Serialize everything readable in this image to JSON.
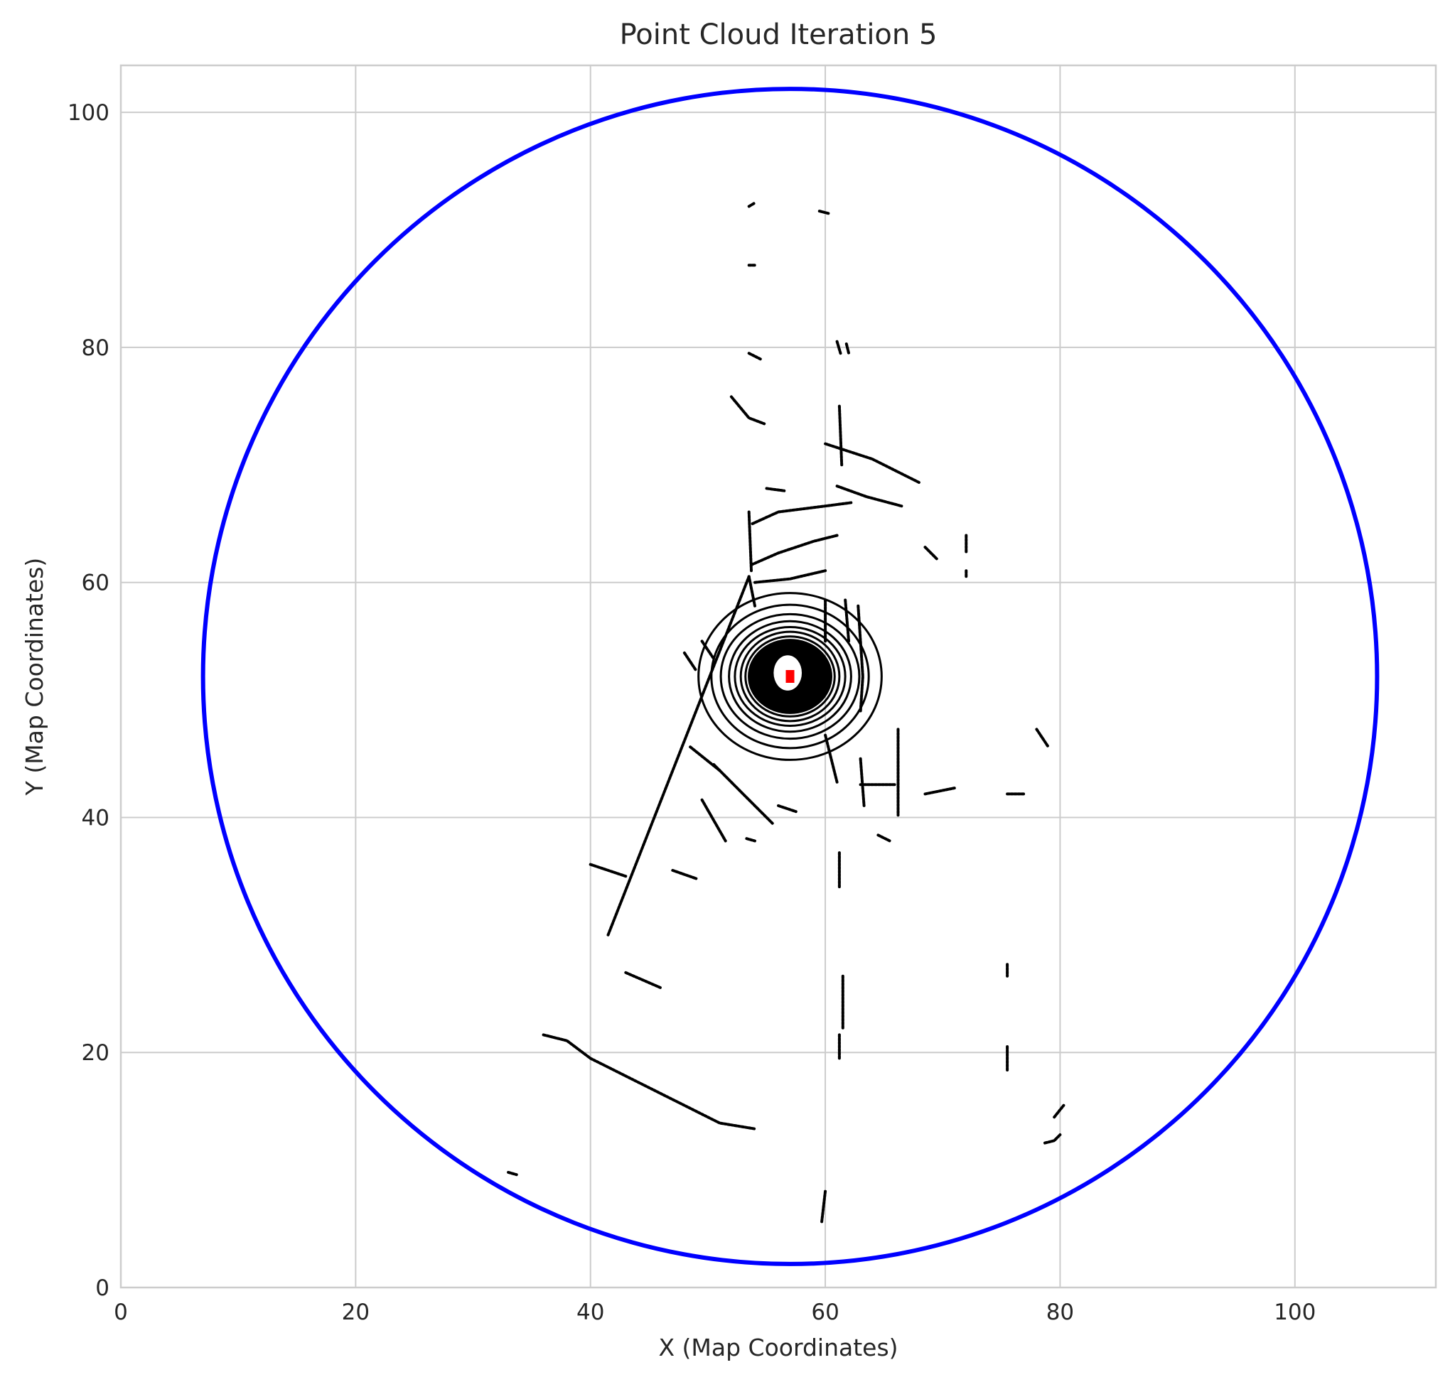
{
  "chart_data": {
    "type": "scatter",
    "title": "Point Cloud Iteration 5",
    "xlabel": "X (Map Coordinates)",
    "ylabel": "Y (Map Coordinates)",
    "xlim": [
      0,
      112
    ],
    "ylim": [
      0,
      104
    ],
    "x_ticks": [
      0,
      20,
      40,
      60,
      80,
      100
    ],
    "y_ticks": [
      0,
      20,
      40,
      60,
      80,
      100
    ],
    "grid": true,
    "colors": {
      "points": "#000000",
      "circle": "#0000ff",
      "center": "#ff0000",
      "grid": "#cccccc",
      "spine": "#cccccc"
    },
    "circle": {
      "center": [
        57,
        52
      ],
      "radius": 50
    },
    "center_marker": {
      "x": 57,
      "y": 52
    },
    "rings": [
      {
        "rx": 3.4,
        "ry": 3.0
      },
      {
        "rx": 3.8,
        "ry": 3.4
      },
      {
        "rx": 4.2,
        "ry": 3.8
      },
      {
        "rx": 4.7,
        "ry": 4.2
      },
      {
        "rx": 5.2,
        "ry": 4.7
      },
      {
        "rx": 5.9,
        "ry": 5.3
      },
      {
        "rx": 6.7,
        "ry": 6.1
      },
      {
        "rx": 7.8,
        "ry": 7.1
      }
    ],
    "segments": [
      [
        [
          41.5,
          30.0
        ],
        [
          53.5,
          60.5
        ]
      ],
      [
        [
          53.5,
          66.0
        ],
        [
          53.7,
          61.0
        ]
      ],
      [
        [
          53.5,
          60.5
        ],
        [
          54.0,
          58.0
        ]
      ],
      [
        [
          53.8,
          65.0
        ],
        [
          56.0,
          66.0
        ],
        [
          60.0,
          66.5
        ],
        [
          62.3,
          66.8
        ]
      ],
      [
        [
          53.7,
          61.5
        ],
        [
          56.0,
          62.5
        ],
        [
          59.0,
          63.5
        ],
        [
          61.0,
          64.0
        ]
      ],
      [
        [
          54.0,
          60.0
        ],
        [
          57.0,
          60.3
        ],
        [
          60.0,
          61.0
        ]
      ],
      [
        [
          60.0,
          71.8
        ],
        [
          64.0,
          70.5
        ],
        [
          68.0,
          68.5
        ]
      ],
      [
        [
          61.0,
          68.2
        ],
        [
          63.5,
          67.3
        ],
        [
          66.5,
          66.5
        ]
      ],
      [
        [
          52.0,
          75.8
        ],
        [
          53.5,
          74.0
        ],
        [
          54.8,
          73.5
        ]
      ],
      [
        [
          50.5,
          44.5
        ],
        [
          53.0,
          42.0
        ],
        [
          55.5,
          39.5
        ]
      ],
      [
        [
          49.5,
          41.5
        ],
        [
          51.5,
          38.0
        ]
      ],
      [
        [
          48.5,
          46.0
        ],
        [
          51.0,
          44.0
        ]
      ],
      [
        [
          40.0,
          36.0
        ],
        [
          43.0,
          35.0
        ]
      ],
      [
        [
          36.0,
          21.5
        ],
        [
          38.0,
          21.0
        ],
        [
          40.0,
          19.5
        ],
        [
          44.0,
          17.5
        ],
        [
          48.0,
          15.5
        ],
        [
          51.0,
          14.0
        ],
        [
          54.0,
          13.5
        ]
      ],
      [
        [
          43.0,
          26.8
        ],
        [
          46.0,
          25.5
        ]
      ],
      [
        [
          47.0,
          35.5
        ],
        [
          49.0,
          34.8
        ]
      ],
      [
        [
          66.2,
          47.5
        ],
        [
          66.2,
          40.2
        ]
      ],
      [
        [
          63.0,
          42.8
        ],
        [
          66.0,
          42.8
        ]
      ],
      [
        [
          62.8,
          58.0
        ],
        [
          63.2,
          52.0
        ],
        [
          63.0,
          49.0
        ]
      ],
      [
        [
          61.7,
          58.5
        ],
        [
          62.0,
          55.0
        ]
      ],
      [
        [
          60.0,
          58.5
        ],
        [
          60.0,
          55.0
        ]
      ],
      [
        [
          61.2,
          75.0
        ],
        [
          61.4,
          70.0
        ]
      ],
      [
        [
          61.0,
          80.5
        ],
        [
          61.3,
          79.5
        ]
      ],
      [
        [
          61.8,
          80.3
        ],
        [
          62.0,
          79.5
        ]
      ],
      [
        [
          63.0,
          45.0
        ],
        [
          63.3,
          41.0
        ]
      ],
      [
        [
          60.0,
          47.0
        ],
        [
          61.0,
          43.0
        ]
      ],
      [
        [
          61.2,
          37.0
        ],
        [
          61.2,
          34.0
        ]
      ],
      [
        [
          61.5,
          26.5
        ],
        [
          61.5,
          22.0
        ]
      ],
      [
        [
          61.2,
          21.5
        ],
        [
          61.2,
          19.5
        ]
      ],
      [
        [
          75.5,
          27.5
        ],
        [
          75.5,
          26.5
        ]
      ],
      [
        [
          75.5,
          20.5
        ],
        [
          75.5,
          18.5
        ]
      ],
      [
        [
          72.0,
          64.0
        ],
        [
          72.0,
          62.5
        ]
      ],
      [
        [
          72.0,
          61.0
        ],
        [
          72.0,
          60.5
        ]
      ],
      [
        [
          68.5,
          63.0
        ],
        [
          69.5,
          62.0
        ]
      ],
      [
        [
          68.5,
          42.0
        ],
        [
          71.0,
          42.5
        ]
      ],
      [
        [
          75.5,
          42.0
        ],
        [
          77.0,
          42.0
        ]
      ],
      [
        [
          78.7,
          12.3
        ],
        [
          79.5,
          12.5
        ],
        [
          80.0,
          13.0
        ]
      ],
      [
        [
          79.5,
          14.5
        ],
        [
          80.3,
          15.5
        ]
      ],
      [
        [
          64.5,
          38.5
        ],
        [
          65.5,
          38.0
        ]
      ],
      [
        [
          48.0,
          54.0
        ],
        [
          49.0,
          52.5
        ]
      ],
      [
        [
          49.5,
          55.0
        ],
        [
          50.5,
          53.5
        ]
      ],
      [
        [
          53.5,
          87.0
        ],
        [
          54.0,
          87.0
        ]
      ],
      [
        [
          53.5,
          92.0
        ],
        [
          54.0,
          92.3
        ]
      ],
      [
        [
          59.5,
          91.6
        ],
        [
          60.3,
          91.4
        ]
      ],
      [
        [
          53.5,
          79.5
        ],
        [
          54.5,
          79.0
        ]
      ],
      [
        [
          55.0,
          68.0
        ],
        [
          56.5,
          67.8
        ]
      ],
      [
        [
          56.0,
          41.0
        ],
        [
          57.5,
          40.5
        ]
      ],
      [
        [
          53.3,
          38.2
        ],
        [
          54.0,
          38.0
        ]
      ],
      [
        [
          78.0,
          47.5
        ],
        [
          79.0,
          46.0
        ]
      ],
      [
        [
          59.7,
          5.6
        ],
        [
          60.0,
          8.2
        ]
      ],
      [
        [
          33.0,
          9.8
        ],
        [
          33.7,
          9.6
        ]
      ]
    ]
  }
}
